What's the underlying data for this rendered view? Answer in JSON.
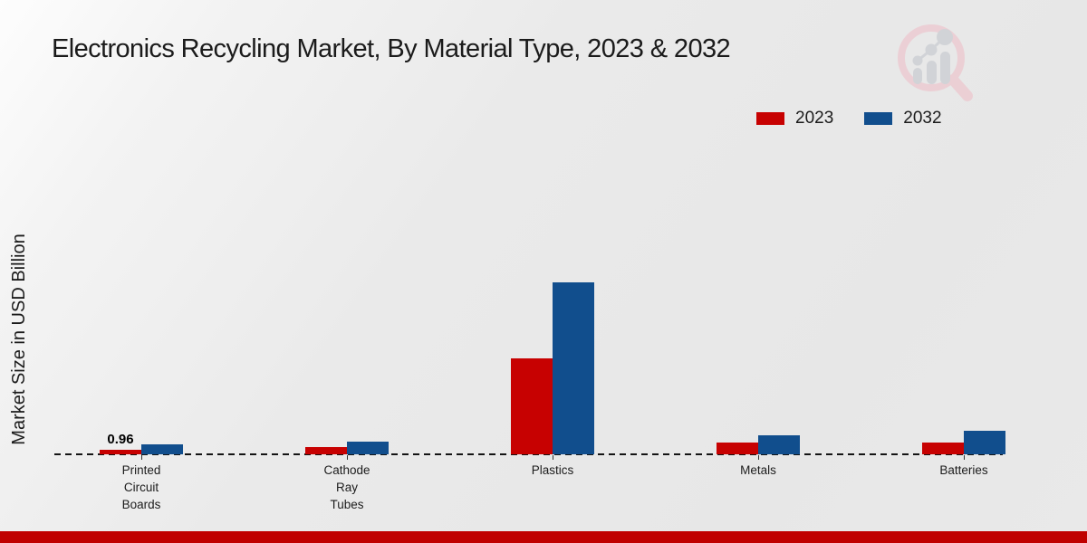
{
  "title": "Electronics Recycling Market, By Material Type, 2023 & 2032",
  "ylabel": "Market Size in USD Billion",
  "colors": {
    "series_2023": "#c70101",
    "series_2032": "#114e8d",
    "axis": "#141414",
    "text": "#1b1b1b",
    "footer_strip": "#c00000",
    "watermark_pink": "#eccdd3",
    "watermark_gray": "#cfd1d6"
  },
  "chart_data": {
    "type": "bar",
    "categories": [
      "Printed Circuit Boards",
      "Cathode Ray Tubes",
      "Plastics",
      "Metals",
      "Batteries"
    ],
    "categories_multiline": [
      [
        "Printed",
        "Circuit",
        "Boards"
      ],
      [
        "Cathode",
        "Ray",
        "Tubes"
      ],
      [
        "Plastics"
      ],
      [
        "Metals"
      ],
      [
        "Batteries"
      ]
    ],
    "series": [
      {
        "name": "2023",
        "color": "#c70101",
        "values": [
          0.96,
          1.4,
          19.3,
          2.3,
          2.3
        ]
      },
      {
        "name": "2032",
        "color": "#114e8d",
        "values": [
          2.0,
          2.6,
          34.6,
          3.9,
          4.7
        ]
      }
    ],
    "annotations": [
      {
        "category_index": 0,
        "series_index": 0,
        "text": "0.96"
      }
    ],
    "ylabel": "Market Size in USD Billion",
    "xlabel": "",
    "ylim": [
      0,
      40
    ],
    "grid": false,
    "legend_position": "top-right",
    "baseline_style": "dashed",
    "y_axis_ticks_visible": false
  }
}
